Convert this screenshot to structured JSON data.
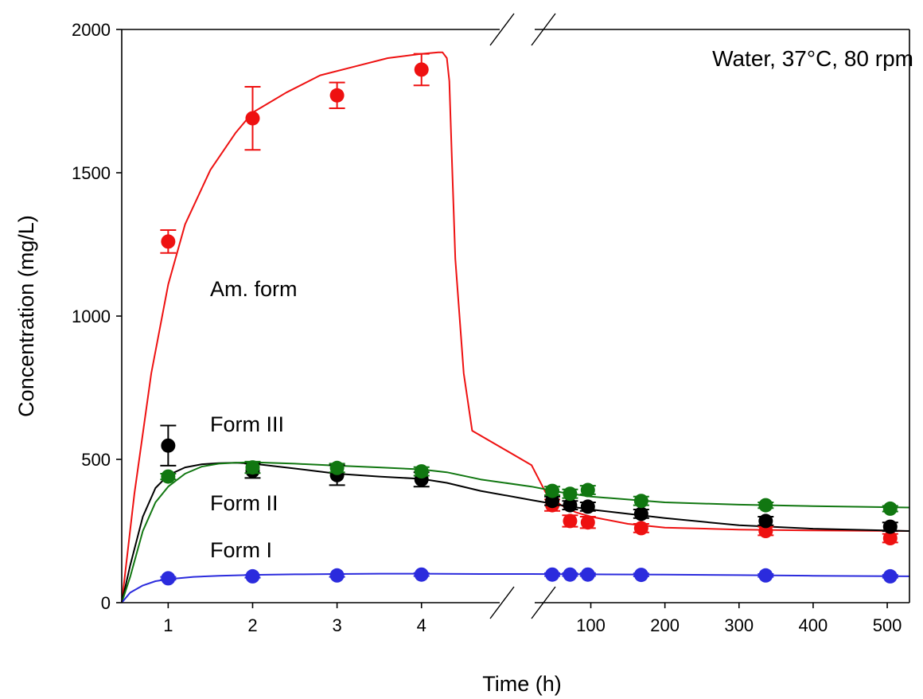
{
  "chart_data": {
    "type": "scatter",
    "title": "",
    "annotation": "Water, 37°C, 80 rpm",
    "xlabel": "Time (h)",
    "ylabel": "Concentration (mg/L)",
    "x_axis": {
      "broken": true,
      "segments": [
        {
          "range": [
            0.45,
            4.7
          ],
          "ticks": [
            1,
            2,
            3,
            4
          ]
        },
        {
          "range": [
            20,
            530
          ],
          "ticks": [
            100,
            200,
            300,
            400,
            500
          ]
        }
      ]
    },
    "ylim": [
      0,
      2000
    ],
    "yticks": [
      0,
      500,
      1000,
      1500,
      2000
    ],
    "legend": "none (series labels drawn inside plot)",
    "grid": false,
    "series": [
      {
        "name": "Am. form",
        "color": "#ee1111",
        "x": [
          1,
          2,
          3,
          4,
          48,
          72,
          96,
          168,
          336,
          504
        ],
        "y": [
          1260,
          1690,
          1770,
          1860,
          340,
          285,
          280,
          260,
          250,
          225
        ],
        "err": [
          40,
          110,
          45,
          55,
          20,
          20,
          20,
          15,
          15,
          15
        ],
        "fit_x": [
          0.45,
          0.6,
          0.8,
          1.0,
          1.2,
          1.5,
          1.8,
          2.0,
          2.4,
          2.8,
          3.2,
          3.6,
          4.0,
          4.2,
          4.25,
          4.3,
          4.33,
          4.36,
          4.4,
          4.5,
          4.6,
          20,
          40,
          60,
          80,
          100,
          150,
          200,
          300,
          400,
          530
        ],
        "fit_y": [
          0,
          380,
          800,
          1110,
          1320,
          1510,
          1640,
          1710,
          1780,
          1840,
          1870,
          1900,
          1915,
          1920,
          1920,
          1900,
          1820,
          1550,
          1200,
          800,
          600,
          480,
          380,
          340,
          315,
          300,
          275,
          262,
          255,
          252,
          250
        ]
      },
      {
        "name": "Form III",
        "color": "#000000",
        "x": [
          1,
          2,
          3,
          4,
          48,
          72,
          96,
          168,
          336,
          504
        ],
        "y": [
          548,
          460,
          445,
          430,
          355,
          340,
          335,
          310,
          285,
          265
        ],
        "err": [
          70,
          25,
          35,
          25,
          15,
          15,
          15,
          15,
          15,
          15
        ],
        "fit_x": [
          0.45,
          0.55,
          0.7,
          0.85,
          1.0,
          1.2,
          1.4,
          1.6,
          1.8,
          2.0,
          2.5,
          3.0,
          3.5,
          4.0,
          4.3,
          4.7,
          20,
          60,
          100,
          150,
          200,
          300,
          400,
          530
        ],
        "fit_y": [
          0,
          130,
          300,
          400,
          445,
          472,
          483,
          487,
          488,
          485,
          468,
          450,
          440,
          432,
          418,
          390,
          358,
          340,
          325,
          310,
          295,
          270,
          258,
          250
        ]
      },
      {
        "name": "Form II",
        "color": "#117711",
        "x": [
          1,
          2,
          3,
          4,
          48,
          72,
          96,
          168,
          336,
          504
        ],
        "y": [
          440,
          472,
          470,
          458,
          390,
          380,
          393,
          355,
          340,
          328
        ],
        "err": [
          10,
          20,
          15,
          15,
          15,
          15,
          15,
          15,
          10,
          10
        ],
        "fit_x": [
          0.45,
          0.55,
          0.7,
          0.85,
          1.0,
          1.2,
          1.4,
          1.6,
          1.8,
          2.0,
          2.5,
          3.0,
          3.5,
          4.0,
          4.3,
          4.7,
          20,
          60,
          100,
          150,
          200,
          300,
          400,
          530
        ],
        "fit_y": [
          0,
          90,
          250,
          350,
          405,
          450,
          475,
          485,
          488,
          490,
          485,
          478,
          472,
          465,
          455,
          430,
          405,
          385,
          370,
          360,
          350,
          342,
          337,
          332
        ]
      },
      {
        "name": "Form I",
        "color": "#2b2bdd",
        "x": [
          1,
          2,
          3,
          4,
          48,
          72,
          96,
          168,
          336,
          504
        ],
        "y": [
          85,
          92,
          95,
          98,
          98,
          98,
          98,
          97,
          95,
          92
        ],
        "err": [
          5,
          5,
          5,
          5,
          5,
          5,
          5,
          5,
          5,
          5
        ],
        "fit_x": [
          0.45,
          0.55,
          0.7,
          0.85,
          1.0,
          1.3,
          1.6,
          2.0,
          2.5,
          3.0,
          3.5,
          4.0,
          4.7,
          20,
          100,
          200,
          300,
          400,
          530
        ],
        "fit_y": [
          0,
          35,
          60,
          75,
          82,
          90,
          94,
          97,
          99,
          100,
          101,
          101,
          100,
          100,
          99,
          98,
          96,
          94,
          92
        ]
      }
    ]
  }
}
